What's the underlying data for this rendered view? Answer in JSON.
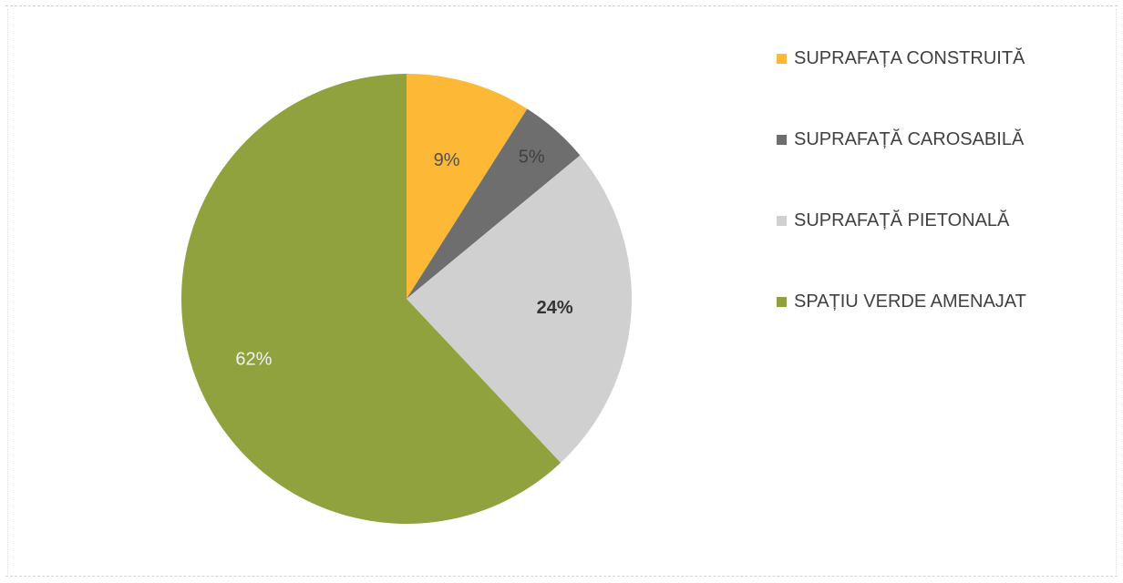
{
  "chart_data": {
    "type": "pie",
    "title": "",
    "slices": [
      {
        "label": "SUPRAFAȚA CONSTRUITĂ",
        "value": 9,
        "display": "9%",
        "color": "#FDB935"
      },
      {
        "label": "SUPRAFAȚĂ CAROSABILĂ",
        "value": 5,
        "display": "5%",
        "color": "#6E6E6E"
      },
      {
        "label": "SUPRAFAȚĂ PIETONALĂ",
        "value": 24,
        "display": "24%",
        "color": "#D0D0D0"
      },
      {
        "label": "SPAȚIU VERDE AMENAJAT",
        "value": 62,
        "display": "62%",
        "color": "#8FA23E"
      }
    ],
    "legend_position": "right",
    "start_angle": "12 o'clock",
    "direction": "clockwise"
  },
  "legend": {
    "items": [
      {
        "label": "SUPRAFAȚA CONSTRUITĂ",
        "color": "#FDB935"
      },
      {
        "label": "SUPRAFAȚĂ CAROSABILĂ",
        "color": "#6E6E6E"
      },
      {
        "label": "SUPRAFAȚĂ PIETONALĂ",
        "color": "#D0D0D0"
      },
      {
        "label": "SPAȚIU VERDE AMENAJAT",
        "color": "#8FA23E"
      }
    ]
  }
}
